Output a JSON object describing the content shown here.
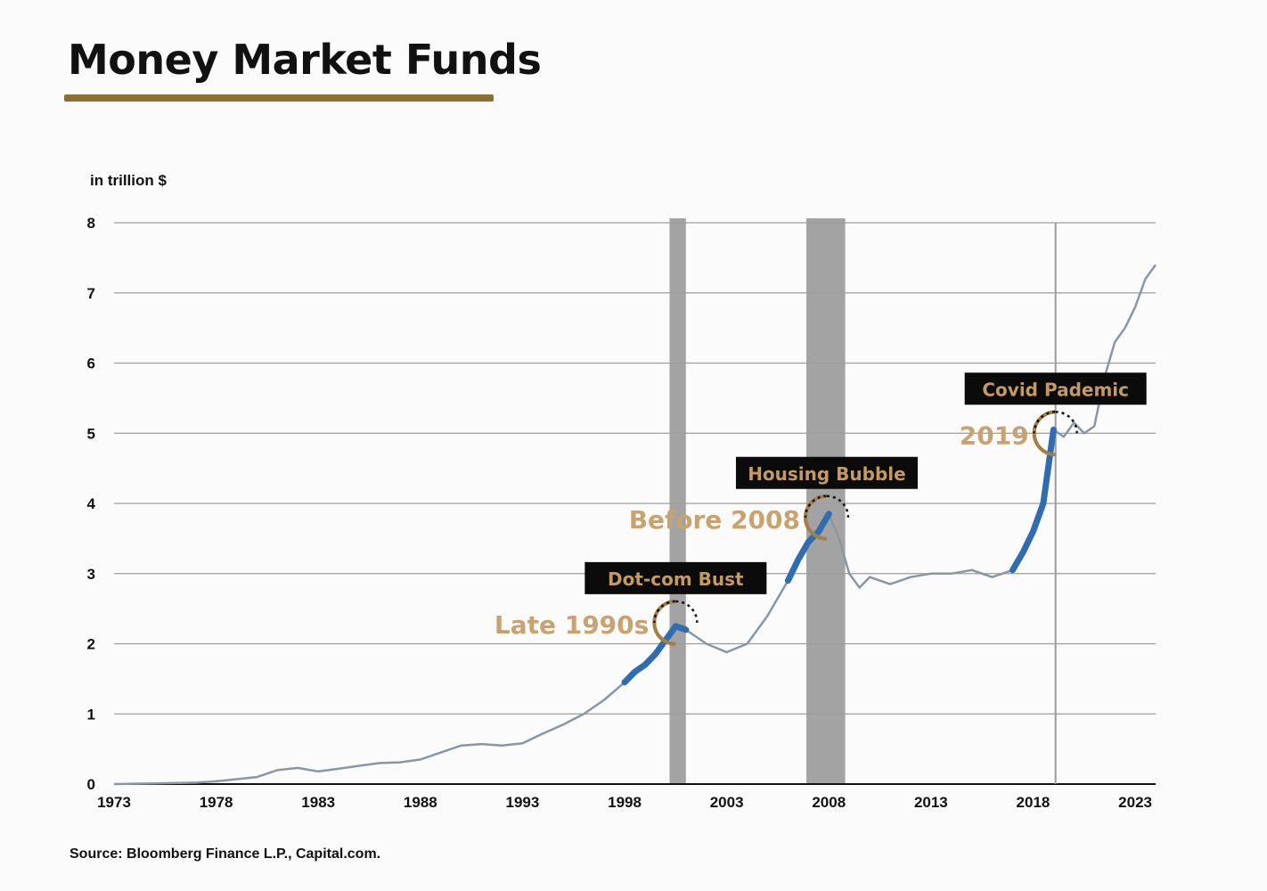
{
  "title": "Money Market Funds",
  "unit_label": "in trillion $",
  "source": "Source: Bloomberg Finance L.P., Capital.com.",
  "colors": {
    "line": "#8a97a3",
    "highlight": "#2f6db3",
    "shade": "#a3a3a3",
    "accent": "#8d6e35",
    "annotation_text": "#c49a62",
    "annotation_box": "#0b0b0b"
  },
  "chart_data": {
    "type": "line",
    "title": "Money Market Funds",
    "ylabel": "in trillion $",
    "xlabel": "",
    "xlim": [
      1973,
      2024
    ],
    "ylim": [
      0,
      8
    ],
    "x_ticks": [
      "1973",
      "1978",
      "1983",
      "1988",
      "1993",
      "1998",
      "2003",
      "2008",
      "2013",
      "2018",
      "2023"
    ],
    "y_ticks": [
      "0",
      "1",
      "2",
      "3",
      "4",
      "5",
      "6",
      "7",
      "8"
    ],
    "grid": "horizontal",
    "x": [
      1973,
      1975,
      1977,
      1978,
      1979,
      1980,
      1981,
      1982,
      1983,
      1984,
      1985,
      1986,
      1987,
      1988,
      1989,
      1990,
      1991,
      1992,
      1993,
      1994,
      1995,
      1996,
      1997,
      1998,
      1998.5,
      1999,
      1999.5,
      2000,
      2000.5,
      2001,
      2001.5,
      2002,
      2003,
      2004,
      2005,
      2006,
      2006.5,
      2007,
      2007.5,
      2008,
      2008.5,
      2009,
      2009.5,
      2010,
      2011,
      2012,
      2013,
      2014,
      2015,
      2016,
      2017,
      2017.5,
      2018,
      2018.5,
      2019,
      2019.5,
      2020,
      2020.5,
      2021,
      2021.5,
      2022,
      2022.5,
      2023,
      2023.5,
      2024
    ],
    "values": [
      0,
      0.01,
      0.02,
      0.04,
      0.07,
      0.1,
      0.2,
      0.23,
      0.18,
      0.22,
      0.26,
      0.3,
      0.31,
      0.35,
      0.45,
      0.55,
      0.57,
      0.55,
      0.58,
      0.72,
      0.85,
      1.0,
      1.2,
      1.45,
      1.6,
      1.7,
      1.85,
      2.05,
      2.25,
      2.2,
      2.1,
      2.0,
      1.88,
      2.0,
      2.4,
      2.9,
      3.2,
      3.45,
      3.6,
      3.85,
      3.5,
      3.0,
      2.8,
      2.95,
      2.85,
      2.95,
      3.0,
      3.0,
      3.05,
      2.95,
      3.05,
      3.3,
      3.6,
      4.0,
      5.05,
      4.95,
      5.15,
      5.0,
      5.1,
      5.8,
      6.3,
      6.5,
      6.8,
      7.2,
      7.4
    ],
    "highlights": [
      {
        "from": 1998,
        "to": 2001
      },
      {
        "from": 2006,
        "to": 2008
      },
      {
        "from": 2017,
        "to": 2019
      }
    ],
    "shaded_periods": [
      {
        "from": 2000.2,
        "to": 2001.0
      },
      {
        "from": 2006.9,
        "to": 2008.8
      }
    ],
    "reference_line_x": 2019.1,
    "annotations": [
      {
        "box": "Dot-com Bust",
        "label": "Late 1990s",
        "x": 2000.5,
        "y": 2.3
      },
      {
        "box": "Housing Bubble",
        "label": "Before 2008",
        "x": 2007.9,
        "y": 3.8
      },
      {
        "box": "Covid Pademic",
        "label": "2019",
        "x": 2019.1,
        "y": 5.0
      }
    ]
  }
}
